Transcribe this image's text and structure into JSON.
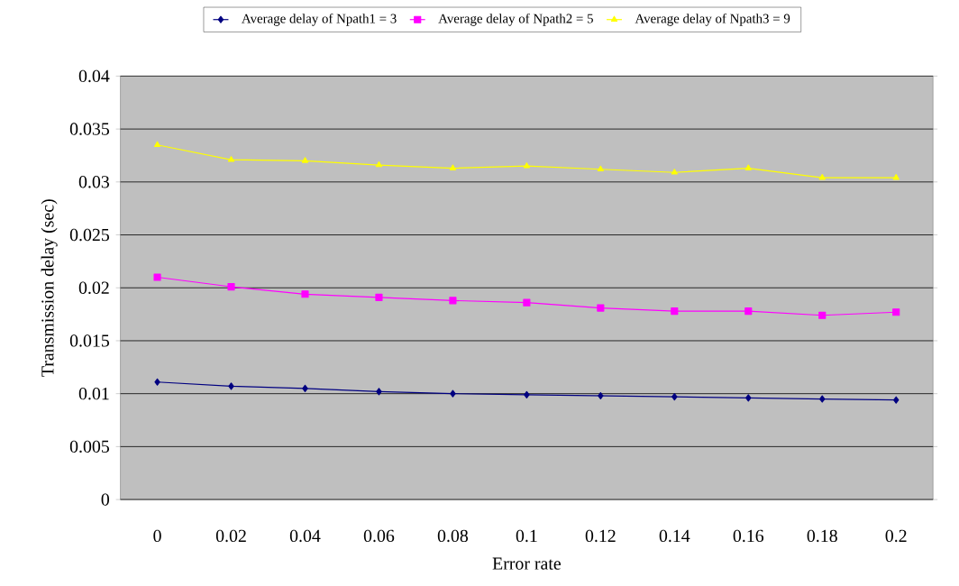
{
  "chart_data": {
    "type": "line",
    "xlabel": "Error rate",
    "ylabel": "Transmission delay (sec)",
    "categories": [
      "0",
      "0.02",
      "0.04",
      "0.06",
      "0.08",
      "0.1",
      "0.12",
      "0.14",
      "0.16",
      "0.18",
      "0.2"
    ],
    "series": [
      {
        "name": "Average delay of Npath1 = 3",
        "color": "#000080",
        "marker": "diamond",
        "values": [
          0.0111,
          0.0107,
          0.0105,
          0.0102,
          0.01,
          0.0099,
          0.0098,
          0.0097,
          0.0096,
          0.0095,
          0.0094
        ]
      },
      {
        "name": "Average delay of Npath2 = 5",
        "color": "#ff00ff",
        "marker": "square",
        "values": [
          0.021,
          0.0201,
          0.0194,
          0.0191,
          0.0188,
          0.0186,
          0.0181,
          0.0178,
          0.0178,
          0.0174,
          0.0177
        ]
      },
      {
        "name": "Average delay of Npath3 = 9",
        "color": "#ffff00",
        "marker": "triangle",
        "values": [
          0.0335,
          0.0321,
          0.032,
          0.0316,
          0.0313,
          0.0315,
          0.0312,
          0.0309,
          0.0313,
          0.0304,
          0.0304
        ]
      }
    ],
    "ylim": [
      0,
      0.04
    ],
    "yticks": [
      0,
      0.005,
      0.01,
      0.015,
      0.02,
      0.025,
      0.03,
      0.035,
      0.04
    ],
    "grid": "y",
    "legend": "top",
    "line_style": "solid"
  }
}
